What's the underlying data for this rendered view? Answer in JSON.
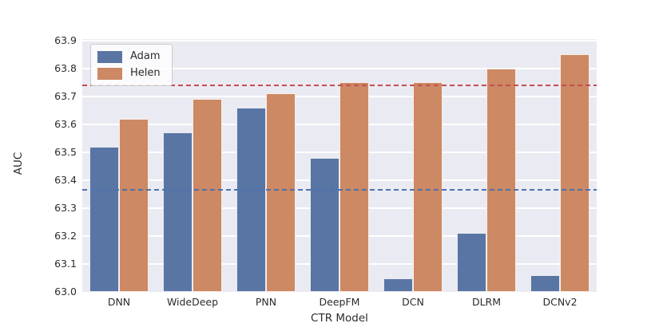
{
  "chart_data": {
    "type": "bar",
    "title": "",
    "xlabel": "CTR Model",
    "ylabel": "AUC",
    "categories": [
      "DNN",
      "WideDeep",
      "PNN",
      "DeepFM",
      "DCN",
      "DLRM",
      "DCNv2"
    ],
    "series": [
      {
        "name": "Adam",
        "color": "#5975a4",
        "values": [
          63.52,
          63.57,
          63.66,
          63.48,
          63.05,
          63.21,
          63.06
        ]
      },
      {
        "name": "Helen",
        "color": "#cc8963",
        "values": [
          63.62,
          63.69,
          63.71,
          63.75,
          63.75,
          63.8,
          63.85
        ]
      }
    ],
    "reference_lines": [
      {
        "name": "helen-average-line",
        "value": 63.739,
        "color": "#c44e52",
        "style": "dashed"
      },
      {
        "name": "adam-average-line",
        "value": 63.365,
        "color": "#4c72b0",
        "style": "dashed"
      }
    ],
    "ylim": [
      63.0,
      63.905
    ],
    "yticks": [
      63.0,
      63.1,
      63.2,
      63.3,
      63.4,
      63.5,
      63.6,
      63.7,
      63.8,
      63.9
    ],
    "ytick_format_decimals": 1,
    "grid": "horizontal",
    "legend_position": "upper-left"
  },
  "colors": {
    "figure_bg": "#ffffff",
    "plot_bg": "#eaeaf2",
    "gridline": "#ffffff",
    "text": "#2b2b2b"
  }
}
